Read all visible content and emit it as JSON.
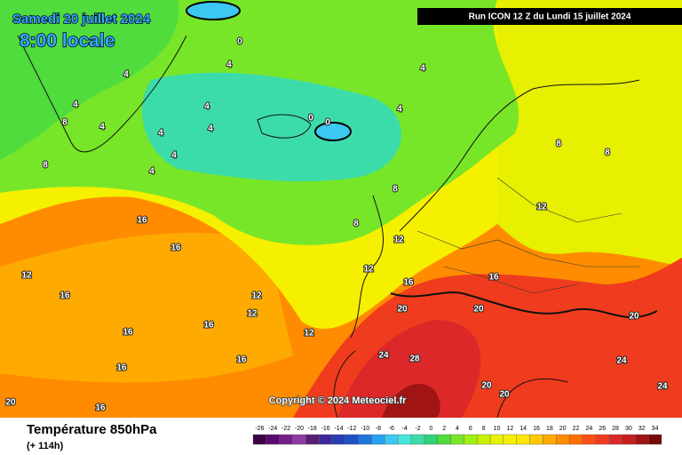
{
  "header": {
    "date": "Samedi 20 juillet 2024",
    "time": "8:00 locale",
    "run": "Run ICON 12 Z du Lundi 15 juillet 2024",
    "copyright": "Copyright © 2024 Meteociel.fr"
  },
  "footer": {
    "title": "Température 850hPa",
    "lead": "(+ 114h)"
  },
  "legend": {
    "values": [
      -26,
      -24,
      -22,
      -20,
      -18,
      -16,
      -14,
      -12,
      -10,
      -8,
      -6,
      -4,
      -2,
      0,
      2,
      4,
      6,
      8,
      10,
      12,
      14,
      16,
      18,
      20,
      22,
      24,
      26,
      28,
      30,
      32,
      34
    ],
    "colors": [
      "#3c0046",
      "#5a0a6e",
      "#781e8c",
      "#8c3ca0",
      "#5a1e78",
      "#3c2896",
      "#283cb4",
      "#1e50c8",
      "#1e78dc",
      "#28a0f0",
      "#3cc8f0",
      "#46e6dc",
      "#3cdcaa",
      "#32d278",
      "#50dc3c",
      "#78e628",
      "#a0f014",
      "#c8f000",
      "#e6f000",
      "#f5f000",
      "#ffe600",
      "#ffc800",
      "#ffaa00",
      "#ff8c00",
      "#ff6e00",
      "#ff5014",
      "#f03c1e",
      "#dc2828",
      "#c81e1e",
      "#a01414",
      "#780a0a"
    ]
  },
  "contour_labels": [
    4,
    4,
    4,
    4,
    4,
    4,
    4,
    4,
    4,
    4,
    4,
    0,
    0,
    0,
    8,
    8,
    8,
    8,
    8,
    8,
    12,
    12,
    12,
    12,
    12,
    12,
    16,
    16,
    16,
    16,
    16,
    16,
    16,
    16,
    16,
    16,
    20,
    20,
    20,
    20,
    20,
    20,
    24,
    24,
    24,
    28,
    12
  ]
}
